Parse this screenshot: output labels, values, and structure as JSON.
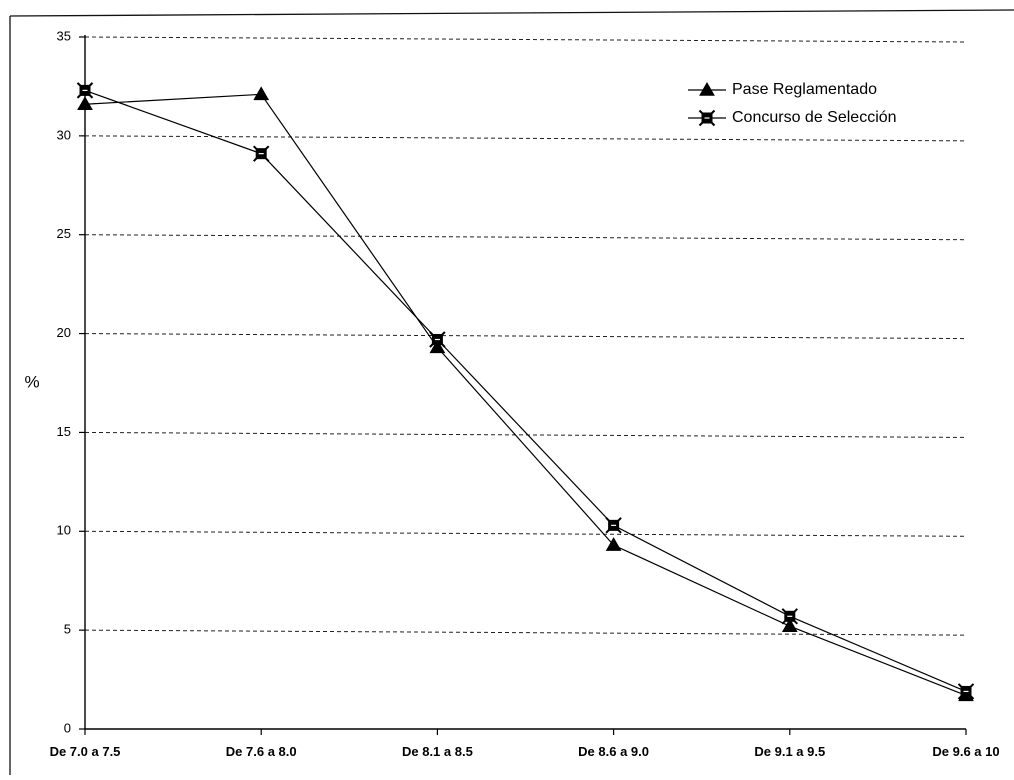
{
  "chart_data": {
    "type": "line",
    "title": "",
    "xlabel": "",
    "ylabel": "%",
    "ylim": [
      0,
      35
    ],
    "yticks": [
      0,
      5,
      10,
      15,
      20,
      25,
      30,
      35
    ],
    "grid": true,
    "grid_style": "dashed-horizontal",
    "legend_position": "top-right",
    "categories": [
      "De 7.0 a 7.5",
      "De 7.6 a 8.0",
      "De 8.1 a 8.5",
      "De 8.6 a 9.0",
      "De 9.1 a 9.5",
      "De 9.6 a 10"
    ],
    "series": [
      {
        "name": "Pase Reglamentado",
        "marker": "triangle",
        "color": "#000000",
        "values": [
          31.6,
          32.1,
          19.3,
          9.3,
          5.2,
          1.7
        ]
      },
      {
        "name": "Concurso de Selección",
        "marker": "x-square",
        "color": "#000000",
        "values": [
          32.3,
          29.1,
          19.7,
          10.3,
          5.7,
          1.9
        ]
      }
    ]
  }
}
